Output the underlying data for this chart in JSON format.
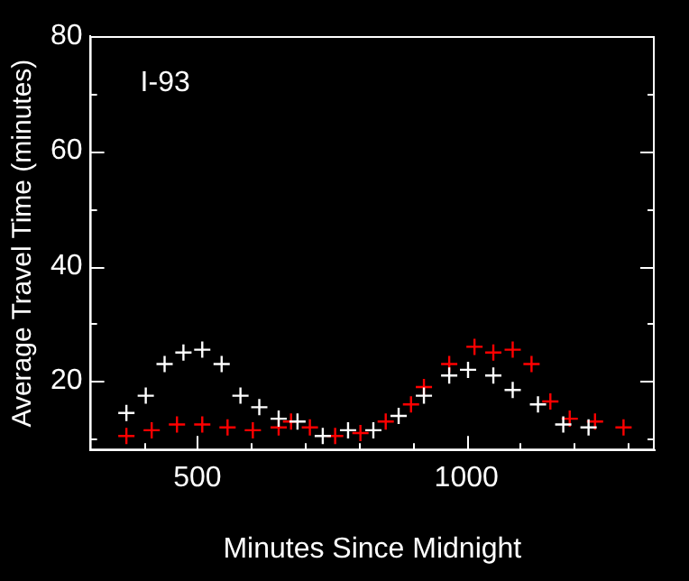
{
  "chart_data": {
    "type": "scatter",
    "xlabel": "Minutes Since Midnight",
    "ylabel": "Average Travel Time (minutes)",
    "annotations": [
      "I-93"
    ],
    "marker": "cross",
    "xlim": [
      300,
      1350
    ],
    "ylim": [
      8,
      80
    ],
    "xticks": [
      {
        "value": 400,
        "label": null
      },
      500,
      {
        "value": 600,
        "label": null
      },
      {
        "value": 700,
        "label": null
      },
      {
        "value": 800,
        "label": null
      },
      {
        "value": 900,
        "label": null
      },
      1000,
      {
        "value": 1100,
        "label": null
      },
      {
        "value": 1200,
        "label": null
      },
      {
        "value": 1300,
        "label": null
      }
    ],
    "yticks": [
      {
        "value": 10,
        "label": null
      },
      20,
      {
        "value": 30,
        "label": null
      },
      40,
      {
        "value": 50,
        "label": null
      },
      60,
      {
        "value": 70,
        "label": null
      },
      80
    ],
    "series": [
      {
        "color": "#ffffff",
        "x": [
          368,
          404,
          439,
          474,
          509,
          545,
          580,
          615,
          651,
          686,
          733,
          780,
          827,
          874,
          921,
          968,
          1003,
          1050,
          1086,
          1133,
          1180,
          1227
        ],
        "values": [
          14.5,
          17.5,
          23,
          25,
          25.5,
          23,
          17.5,
          15.5,
          13.5,
          13,
          10.5,
          11.5,
          11.5,
          14,
          17.5,
          21,
          22,
          21,
          18.5,
          16,
          12.5,
          12
        ]
      },
      {
        "color": "#ff0000",
        "x": [
          368,
          415,
          462,
          509,
          556,
          603,
          651,
          674,
          709,
          756,
          803,
          850,
          897,
          921,
          968,
          1015,
          1050,
          1086,
          1121,
          1156,
          1192,
          1239,
          1292
        ],
        "values": [
          10.5,
          11.5,
          12.5,
          12.5,
          12,
          11.5,
          12,
          13,
          12,
          10.5,
          11,
          13,
          16,
          19,
          23,
          26,
          25,
          25.5,
          23,
          16.5,
          13.5,
          13,
          12
        ]
      }
    ]
  }
}
